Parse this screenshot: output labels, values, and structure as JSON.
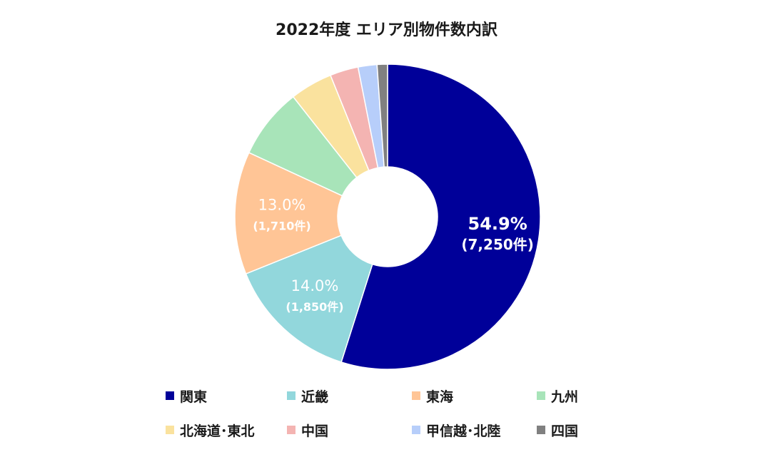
{
  "chart_data": {
    "type": "pie",
    "variant": "donut",
    "title": "2022年度 エリア別物件数内訳",
    "categories": [
      "関東",
      "近畿",
      "東海",
      "九州",
      "北海道･東北",
      "中国",
      "甲信越･北陸",
      "四国"
    ],
    "values": [
      54.9,
      14.0,
      13.0,
      7.5,
      4.5,
      3.0,
      2.0,
      1.1
    ],
    "colors": [
      "#000099",
      "#92D7DC",
      "#FFC596",
      "#A8E4B9",
      "#FAE29E",
      "#F4B4B2",
      "#B7CEFA",
      "#808080"
    ],
    "data_labels": [
      {
        "category": "関東",
        "percent": "54.9%",
        "count": "(7,250件)"
      },
      {
        "category": "近畿",
        "percent": "14.0%",
        "count": "(1,850件)"
      },
      {
        "category": "東海",
        "percent": "13.0%",
        "count": "(1,710件)"
      }
    ],
    "legend_placement": "bottom"
  }
}
